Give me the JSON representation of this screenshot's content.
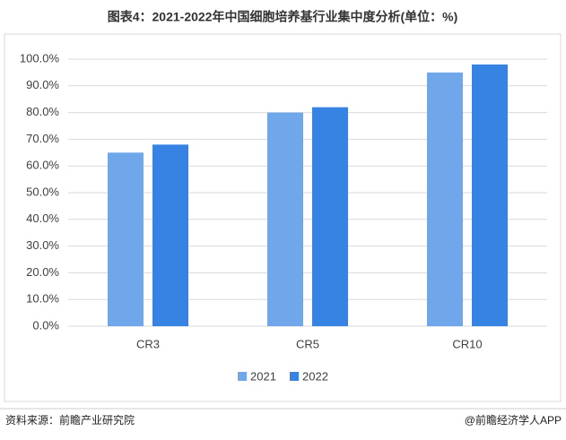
{
  "chart_data": {
    "type": "bar",
    "title": "图表4：2021-2022年中国细胞培养基行业集中度分析(单位：%)",
    "categories": [
      "CR3",
      "CR5",
      "CR10"
    ],
    "series": [
      {
        "name": "2021",
        "color": "#70a6ea",
        "values": [
          65,
          80,
          95
        ]
      },
      {
        "name": "2022",
        "color": "#3683e3",
        "values": [
          68,
          82,
          98
        ]
      }
    ],
    "ylim": [
      0,
      100
    ],
    "yticks": [
      {
        "value": 0,
        "label": "0.0%"
      },
      {
        "value": 10,
        "label": "10.0%"
      },
      {
        "value": 20,
        "label": "20.0%"
      },
      {
        "value": 30,
        "label": "30.0%"
      },
      {
        "value": 40,
        "label": "40.0%"
      },
      {
        "value": 50,
        "label": "50.0%"
      },
      {
        "value": 60,
        "label": "60.0%"
      },
      {
        "value": 70,
        "label": "70.0%"
      },
      {
        "value": 80,
        "label": "80.0%"
      },
      {
        "value": 90,
        "label": "90.0%"
      },
      {
        "value": 100,
        "label": "100.0%"
      }
    ],
    "grid": true,
    "legend": "bottom",
    "source": "资料来源：前瞻产业研究院",
    "credit": "@前瞻经济学人APP"
  }
}
